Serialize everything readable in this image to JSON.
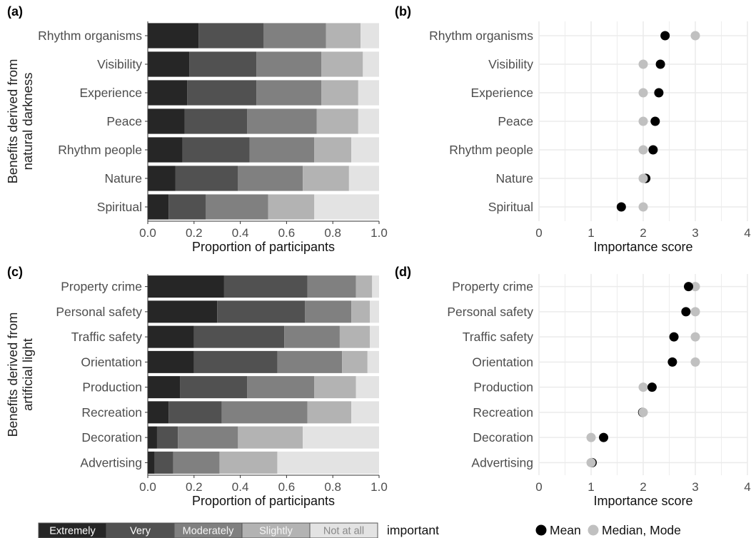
{
  "chart_data": [
    {
      "panel": "(a)",
      "type": "bar",
      "orientation": "horizontal",
      "stacked": true,
      "categories": [
        "Rhythm organisms",
        "Visibility",
        "Experience",
        "Peace",
        "Rhythm people",
        "Nature",
        "Spiritual"
      ],
      "series": [
        {
          "name": "Extremely",
          "values": [
            0.22,
            0.18,
            0.17,
            0.16,
            0.15,
            0.12,
            0.09
          ]
        },
        {
          "name": "Very",
          "values": [
            0.28,
            0.29,
            0.3,
            0.27,
            0.29,
            0.27,
            0.16
          ]
        },
        {
          "name": "Moderately",
          "values": [
            0.27,
            0.28,
            0.28,
            0.3,
            0.28,
            0.28,
            0.27
          ]
        },
        {
          "name": "Slightly",
          "values": [
            0.15,
            0.18,
            0.16,
            0.18,
            0.16,
            0.2,
            0.2
          ]
        },
        {
          "name": "Not at all",
          "values": [
            0.08,
            0.07,
            0.09,
            0.09,
            0.12,
            0.13,
            0.28
          ]
        }
      ],
      "xlabel": "Proportion of participants",
      "ylabel": "Benefits derived from natural darkness",
      "xlim": [
        0,
        1
      ],
      "xticks": [
        "0.0",
        "0.2",
        "0.4",
        "0.6",
        "0.8",
        "1.0"
      ]
    },
    {
      "panel": "(b)",
      "type": "scatter",
      "categories": [
        "Rhythm organisms",
        "Visibility",
        "Experience",
        "Peace",
        "Rhythm people",
        "Nature",
        "Spiritual"
      ],
      "series": [
        {
          "name": "Mean",
          "values": [
            2.42,
            2.33,
            2.3,
            2.23,
            2.19,
            2.05,
            1.58
          ]
        },
        {
          "name": "Median, Mode",
          "values": [
            3,
            2,
            2,
            2,
            2,
            2,
            2
          ]
        }
      ],
      "xlabel": "Importance score",
      "xlim": [
        0,
        4
      ],
      "xticks": [
        "0",
        "1",
        "2",
        "3",
        "4"
      ]
    },
    {
      "panel": "(c)",
      "type": "bar",
      "orientation": "horizontal",
      "stacked": true,
      "categories": [
        "Property crime",
        "Personal safety",
        "Traffic safety",
        "Orientation",
        "Production",
        "Recreation",
        "Decoration",
        "Advertising"
      ],
      "series": [
        {
          "name": "Extremely",
          "values": [
            0.33,
            0.3,
            0.2,
            0.2,
            0.14,
            0.09,
            0.04,
            0.03
          ]
        },
        {
          "name": "Very",
          "values": [
            0.36,
            0.38,
            0.39,
            0.36,
            0.29,
            0.23,
            0.09,
            0.08
          ]
        },
        {
          "name": "Moderately",
          "values": [
            0.21,
            0.2,
            0.24,
            0.28,
            0.29,
            0.37,
            0.26,
            0.2
          ]
        },
        {
          "name": "Slightly",
          "values": [
            0.07,
            0.08,
            0.13,
            0.11,
            0.18,
            0.19,
            0.28,
            0.25
          ]
        },
        {
          "name": "Not at all",
          "values": [
            0.03,
            0.04,
            0.04,
            0.05,
            0.1,
            0.12,
            0.33,
            0.44
          ]
        }
      ],
      "xlabel": "Proportion of participants",
      "ylabel": "Benefits derived from artificial light",
      "xlim": [
        0,
        1
      ],
      "xticks": [
        "0.0",
        "0.2",
        "0.4",
        "0.6",
        "0.8",
        "1.0"
      ]
    },
    {
      "panel": "(d)",
      "type": "scatter",
      "categories": [
        "Property crime",
        "Personal safety",
        "Traffic safety",
        "Orientation",
        "Production",
        "Recreation",
        "Decoration",
        "Advertising"
      ],
      "series": [
        {
          "name": "Mean",
          "values": [
            2.87,
            2.82,
            2.59,
            2.56,
            2.17,
            1.99,
            1.24,
            1.02
          ]
        },
        {
          "name": "Median, Mode",
          "values": [
            3,
            3,
            3,
            3,
            2,
            2,
            1,
            1
          ]
        }
      ],
      "xlabel": "Importance score",
      "xlim": [
        0,
        4
      ],
      "xticks": [
        "0",
        "1",
        "2",
        "3",
        "4"
      ]
    }
  ],
  "legend_left": {
    "items": [
      "Extremely",
      "Very",
      "Moderately",
      "Slightly",
      "Not at all"
    ],
    "suffix": "important"
  },
  "legend_right": {
    "mean_label": "Mean",
    "median_label": "Median, Mode"
  },
  "colors": {
    "Extremely": "#262626",
    "Very": "#515151",
    "Moderately": "#808080",
    "Slightly": "#b3b3b3",
    "Not at all": "#e3e3e3",
    "mean": "#000000",
    "median": "#c0c0c0",
    "grid": "#ebebeb"
  }
}
